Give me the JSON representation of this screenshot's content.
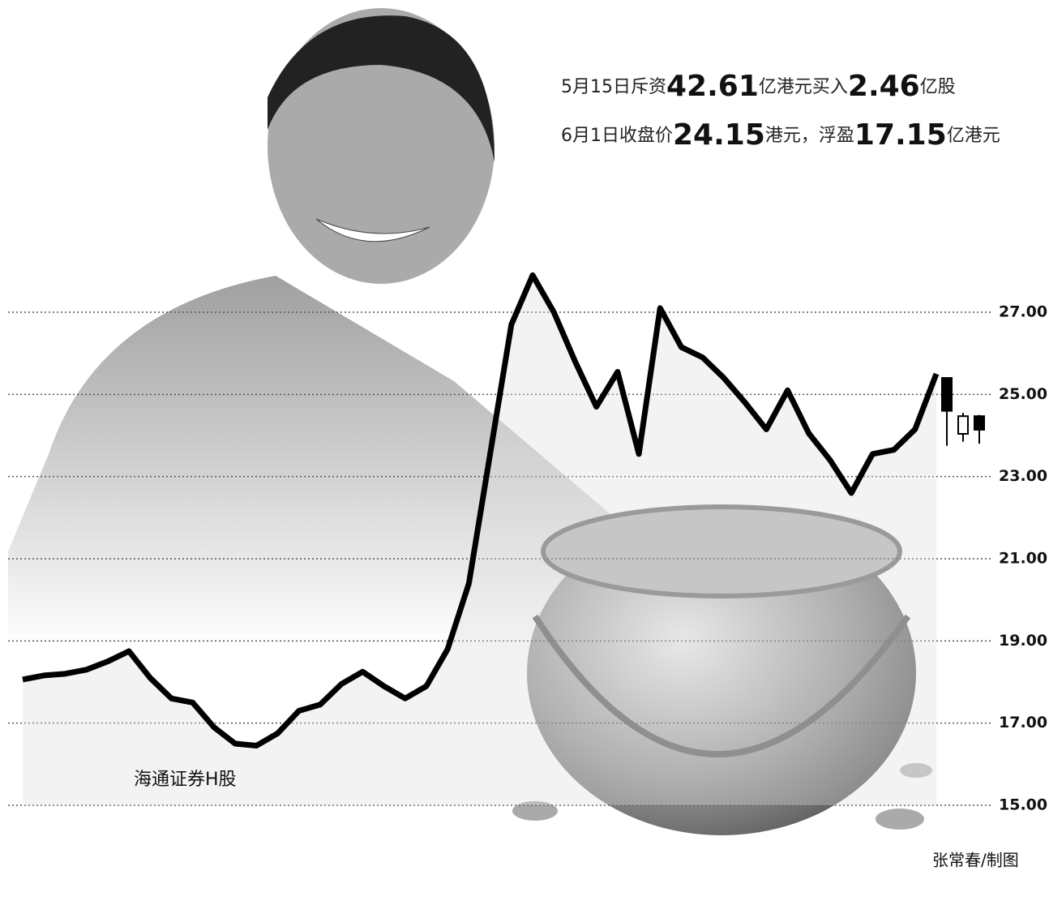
{
  "chart_data": {
    "type": "line",
    "annotations": [
      [
        "5月15日斥资",
        "42.61",
        "亿港元买入",
        "2.46",
        "亿股"
      ],
      [
        "6月1日收盘价",
        "24.15",
        "港元，浮盈",
        "17.15",
        "亿港元"
      ]
    ],
    "credit": "张常春/制图",
    "categories": [
      null,
      null,
      null,
      null,
      null,
      null,
      null,
      null,
      null,
      null,
      null,
      null,
      null,
      null,
      null,
      null,
      null,
      null,
      null,
      null,
      null,
      null,
      null,
      null,
      null,
      null,
      null,
      null,
      null,
      null,
      null,
      null,
      null,
      null,
      null,
      null,
      null,
      null,
      null,
      null,
      null,
      null,
      null,
      null
    ],
    "series": [
      {
        "name": "海通证券H股",
        "color": "#000000",
        "values": [
          18.06,
          18.16,
          18.2,
          18.3,
          18.5,
          18.75,
          18.1,
          17.6,
          17.5,
          16.9,
          16.5,
          16.45,
          16.75,
          17.3,
          17.45,
          17.95,
          18.25,
          17.9,
          17.6,
          17.9,
          18.8,
          20.4,
          23.55,
          26.7,
          27.9,
          27.0,
          25.8,
          24.7,
          25.55,
          23.55,
          27.1,
          26.15,
          25.9,
          25.4,
          24.8,
          24.15,
          25.1,
          24.05,
          23.4,
          22.6,
          23.55,
          23.65,
          24.15,
          25.5
        ]
      }
    ],
    "candles": [
      {
        "open": 25.4,
        "high": 25.4,
        "low": 23.75,
        "close": 24.6
      },
      {
        "open": 24.04,
        "high": 24.55,
        "low": 23.85,
        "close": 24.47
      },
      {
        "open": 24.47,
        "high": 24.5,
        "low": 23.8,
        "close": 24.14
      }
    ],
    "ylim": [
      15,
      27
    ],
    "yticks": [
      {
        "value": 15,
        "label": "15.00"
      },
      {
        "value": 17,
        "label": "17.00"
      },
      {
        "value": 19,
        "label": "19.00"
      },
      {
        "value": 21,
        "label": "21.00"
      },
      {
        "value": 23,
        "label": "23.00"
      },
      {
        "value": 25,
        "label": "25.00"
      },
      {
        "value": 27,
        "label": "27.00"
      }
    ],
    "grid": true
  }
}
